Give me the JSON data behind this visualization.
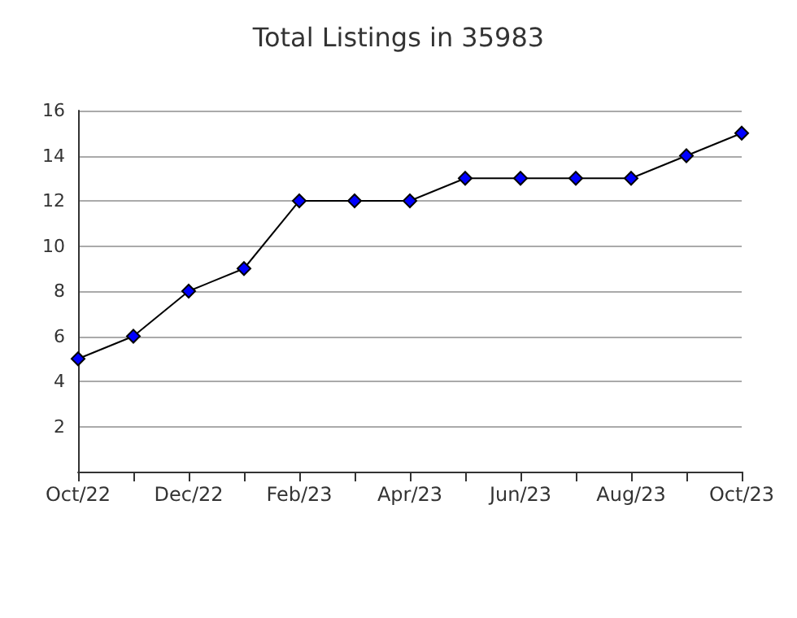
{
  "chart_data": {
    "type": "line",
    "title": "Total Listings in 35983",
    "categories": [
      "Oct/22",
      null,
      "Dec/22",
      null,
      "Feb/23",
      null,
      "Apr/23",
      null,
      "Jun/23",
      null,
      "Aug/23",
      null,
      "Oct/23"
    ],
    "series": [
      {
        "color": "#0000ff",
        "values": [
          5,
          6,
          8,
          9,
          12,
          12,
          12,
          13,
          13,
          13,
          13,
          14,
          15
        ]
      }
    ],
    "ylim": [
      0,
      16
    ],
    "yticks": [
      {
        "value": 0,
        "label": null
      },
      2,
      4,
      6,
      8,
      10,
      12,
      14,
      16
    ],
    "grid": "y",
    "marker": "diamond",
    "line_style": "solid"
  }
}
